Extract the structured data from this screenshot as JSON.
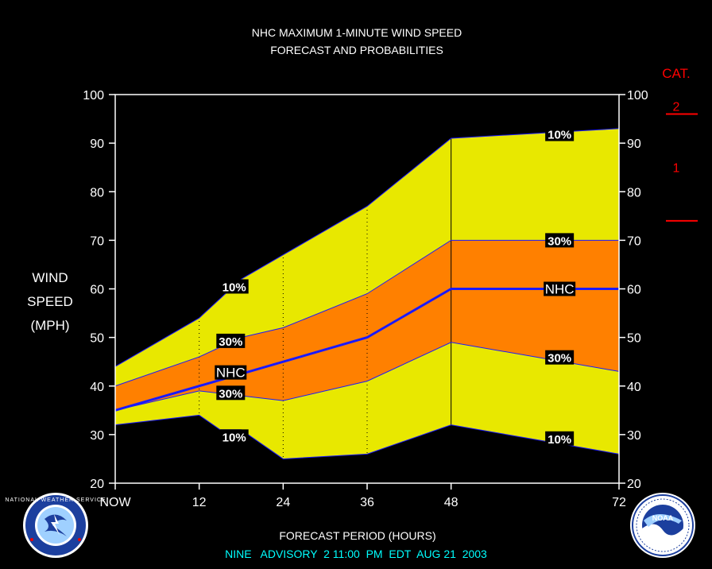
{
  "chart_data": {
    "type": "area",
    "title": "NHC MAXIMUM 1-MINUTE WIND SPEED",
    "subtitle": "FORECAST AND PROBABILITIES",
    "ylabel_lines": [
      "WIND",
      "SPEED",
      "(MPH)"
    ],
    "xlabel": "FORECAST PERIOD (HOURS)",
    "footer": "NINE   ADVISORY  2 11:00  PM  EDT  AUG 21  2003",
    "ylim": [
      20,
      100
    ],
    "xlim": [
      0,
      72
    ],
    "yticks": [
      20,
      30,
      40,
      50,
      60,
      70,
      80,
      90,
      100
    ],
    "xticks": [
      {
        "x": 0,
        "label": "NOW"
      },
      {
        "x": 12,
        "label": "12"
      },
      {
        "x": 24,
        "label": "24"
      },
      {
        "x": 36,
        "label": "36"
      },
      {
        "x": 48,
        "label": "48"
      },
      {
        "x": 72,
        "label": "72"
      }
    ],
    "dotted_gridlines_x": [
      12,
      24,
      36
    ],
    "solid_gridlines_x": [
      48
    ],
    "category_axis": {
      "title": "CAT.",
      "thresholds": [
        {
          "mph": 74,
          "label": "1"
        },
        {
          "mph": 96,
          "label": "2"
        }
      ]
    },
    "colors": {
      "band_10": "#e8e800",
      "band_30": "#ff8000",
      "nhc_line": "#1a1aff",
      "category": "#ff0000",
      "footer": "#00ffff",
      "text": "#ffffff",
      "label_bg": "#000000"
    },
    "series": [
      {
        "name": "10%",
        "role": "upper_10",
        "points": [
          [
            0,
            44
          ],
          [
            12,
            54
          ],
          [
            18,
            62
          ],
          [
            24,
            67
          ],
          [
            36,
            77
          ],
          [
            48,
            91
          ],
          [
            72,
            93
          ]
        ]
      },
      {
        "name": "30%",
        "role": "upper_30",
        "points": [
          [
            0,
            40
          ],
          [
            12,
            46
          ],
          [
            18,
            50
          ],
          [
            24,
            52
          ],
          [
            36,
            59
          ],
          [
            48,
            70
          ],
          [
            72,
            70
          ]
        ]
      },
      {
        "name": "NHC",
        "role": "forecast",
        "points": [
          [
            0,
            35
          ],
          [
            12,
            40
          ],
          [
            24,
            45
          ],
          [
            36,
            50
          ],
          [
            48,
            60
          ],
          [
            72,
            60
          ]
        ]
      },
      {
        "name": "30%",
        "role": "lower_30",
        "points": [
          [
            0,
            35
          ],
          [
            12,
            39
          ],
          [
            24,
            37
          ],
          [
            36,
            41
          ],
          [
            48,
            49
          ],
          [
            72,
            43
          ]
        ]
      },
      {
        "name": "10%",
        "role": "lower_10",
        "points": [
          [
            0,
            32
          ],
          [
            12,
            34
          ],
          [
            15,
            31
          ],
          [
            18,
            31
          ],
          [
            24,
            25
          ],
          [
            36,
            26
          ],
          [
            48,
            32
          ],
          [
            72,
            26
          ]
        ]
      }
    ],
    "annotations": [
      {
        "text": "10%",
        "x": 17,
        "y": 60.5
      },
      {
        "text": "30%",
        "x": 16.5,
        "y": 49.3
      },
      {
        "text": "NHC",
        "x": 16.5,
        "y": 42.8
      },
      {
        "text": "30%",
        "x": 16.5,
        "y": 38.6
      },
      {
        "text": "10%",
        "x": 17,
        "y": 29.6
      },
      {
        "text": "10%",
        "x": 63.5,
        "y": 91.9
      },
      {
        "text": "30%",
        "x": 63.5,
        "y": 70
      },
      {
        "text": "NHC",
        "x": 63.5,
        "y": 60
      },
      {
        "text": "30%",
        "x": 63.5,
        "y": 45.9
      },
      {
        "text": "10%",
        "x": 63.5,
        "y": 29.2
      }
    ]
  },
  "logos": {
    "left_name": "nws-logo-icon",
    "left_text": "NATIONAL WEATHER SERVICE",
    "right_name": "noaa-logo-icon",
    "right_text": "NOAA"
  }
}
